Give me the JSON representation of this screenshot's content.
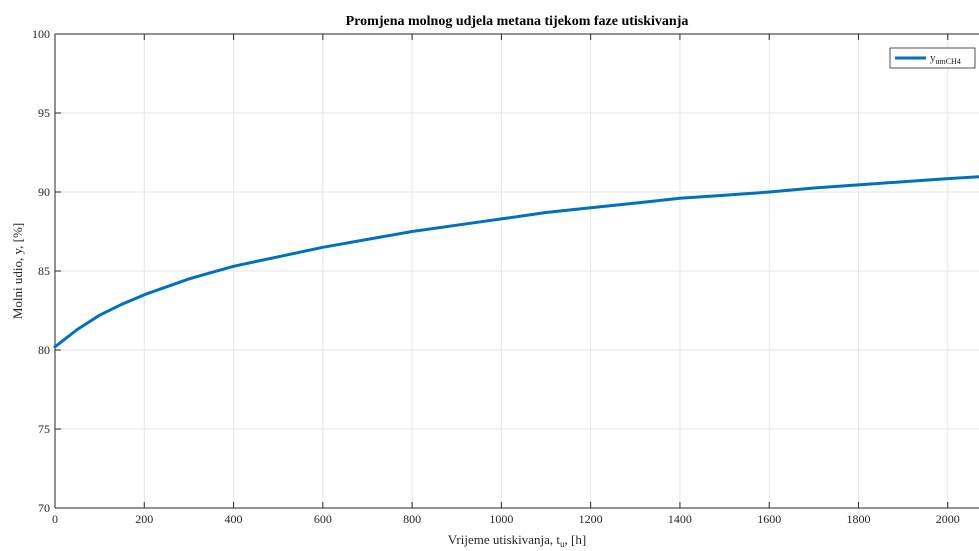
{
  "chart_data": {
    "type": "line",
    "title": "Promjena molnog udjela metana tijekom faze utiskivanja",
    "xlabel": {
      "main": "Vrijeme utiskivanja, t",
      "sub": "u",
      "suffix": ", [h]"
    },
    "ylabel": "Molni udio, y, [%]",
    "xlim": [
      0,
      2070
    ],
    "ylim": [
      70,
      100
    ],
    "xticks": [
      0,
      200,
      400,
      600,
      800,
      1000,
      1200,
      1400,
      1600,
      1800,
      2000
    ],
    "yticks": [
      70,
      75,
      80,
      85,
      90,
      95,
      100
    ],
    "grid": true,
    "legend_position": "top-right",
    "series": [
      {
        "name": {
          "main": "y",
          "sub": "umCH4"
        },
        "color": "#0072BD",
        "x": [
          0,
          50,
          100,
          150,
          200,
          250,
          300,
          350,
          400,
          450,
          500,
          600,
          700,
          800,
          900,
          1000,
          1100,
          1200,
          1300,
          1400,
          1500,
          1600,
          1700,
          1800,
          1900,
          2000,
          2070
        ],
        "y": [
          80.2,
          81.3,
          82.2,
          82.9,
          83.5,
          84.0,
          84.5,
          84.9,
          85.3,
          85.6,
          85.9,
          86.5,
          87.0,
          87.5,
          87.9,
          88.3,
          88.7,
          89.0,
          89.3,
          89.6,
          89.8,
          90.0,
          90.25,
          90.45,
          90.65,
          90.85,
          90.97
        ]
      }
    ]
  }
}
